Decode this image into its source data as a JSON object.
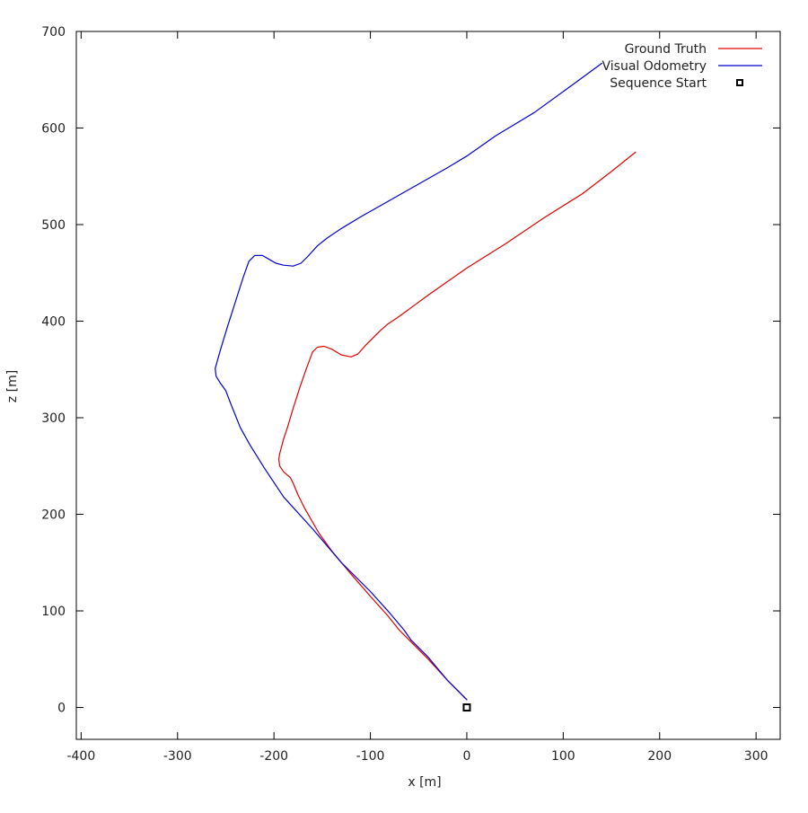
{
  "chart_data": {
    "type": "line",
    "xlabel": "x [m]",
    "ylabel": "z [m]",
    "xlim": [
      -405,
      325
    ],
    "ylim": [
      -33,
      700
    ],
    "x_ticks": [
      -400,
      -300,
      -200,
      -100,
      0,
      100,
      200,
      300
    ],
    "y_ticks": [
      0,
      100,
      200,
      300,
      400,
      500,
      600,
      700
    ],
    "grid": false,
    "legend_position": "top-right",
    "series": [
      {
        "name": "Ground Truth",
        "color": "#e00000",
        "points": [
          [
            0,
            8
          ],
          [
            -20,
            28
          ],
          [
            -40,
            50
          ],
          [
            -58,
            68
          ],
          [
            -70,
            80
          ],
          [
            -82,
            95
          ],
          [
            -100,
            115
          ],
          [
            -120,
            138
          ],
          [
            -140,
            162
          ],
          [
            -153,
            180
          ],
          [
            -160,
            192
          ],
          [
            -168,
            206
          ],
          [
            -175,
            220
          ],
          [
            -180,
            232
          ],
          [
            -183,
            238
          ],
          [
            -190,
            244
          ],
          [
            -194,
            250
          ],
          [
            -195,
            257
          ],
          [
            -194,
            263
          ],
          [
            -190,
            278
          ],
          [
            -186,
            290
          ],
          [
            -180,
            310
          ],
          [
            -173,
            332
          ],
          [
            -166,
            352
          ],
          [
            -160,
            368
          ],
          [
            -155,
            373
          ],
          [
            -148,
            374
          ],
          [
            -140,
            371
          ],
          [
            -130,
            365
          ],
          [
            -120,
            363
          ],
          [
            -113,
            366
          ],
          [
            -105,
            375
          ],
          [
            -98,
            382
          ],
          [
            -90,
            390
          ],
          [
            -82,
            397
          ],
          [
            -70,
            405
          ],
          [
            -55,
            416
          ],
          [
            -40,
            427
          ],
          [
            -20,
            441
          ],
          [
            0,
            455
          ],
          [
            40,
            480
          ],
          [
            80,
            507
          ],
          [
            120,
            532
          ],
          [
            150,
            555
          ],
          [
            175,
            575
          ]
        ]
      },
      {
        "name": "Visual Odometry",
        "color": "#0000cc",
        "points": [
          [
            0,
            8
          ],
          [
            -20,
            28
          ],
          [
            -40,
            52
          ],
          [
            -58,
            70
          ],
          [
            -65,
            80
          ],
          [
            -80,
            98
          ],
          [
            -100,
            120
          ],
          [
            -130,
            150
          ],
          [
            -160,
            185
          ],
          [
            -190,
            218
          ],
          [
            -210,
            248
          ],
          [
            -225,
            272
          ],
          [
            -235,
            290
          ],
          [
            -245,
            315
          ],
          [
            -250,
            328
          ],
          [
            -255,
            335
          ],
          [
            -260,
            343
          ],
          [
            -261,
            351
          ],
          [
            -259,
            358
          ],
          [
            -255,
            372
          ],
          [
            -248,
            395
          ],
          [
            -240,
            420
          ],
          [
            -232,
            445
          ],
          [
            -226,
            462
          ],
          [
            -220,
            468
          ],
          [
            -212,
            468
          ],
          [
            -205,
            464
          ],
          [
            -198,
            460
          ],
          [
            -190,
            458
          ],
          [
            -180,
            457
          ],
          [
            -172,
            460
          ],
          [
            -165,
            467
          ],
          [
            -155,
            478
          ],
          [
            -145,
            486
          ],
          [
            -130,
            496
          ],
          [
            -110,
            508
          ],
          [
            -80,
            525
          ],
          [
            -50,
            542
          ],
          [
            -20,
            559
          ],
          [
            0,
            571
          ],
          [
            30,
            592
          ],
          [
            70,
            616
          ],
          [
            110,
            645
          ],
          [
            140,
            667
          ]
        ]
      }
    ],
    "markers": [
      {
        "name": "Sequence Start",
        "x": 0,
        "y": 0,
        "color": "#000000"
      }
    ]
  }
}
